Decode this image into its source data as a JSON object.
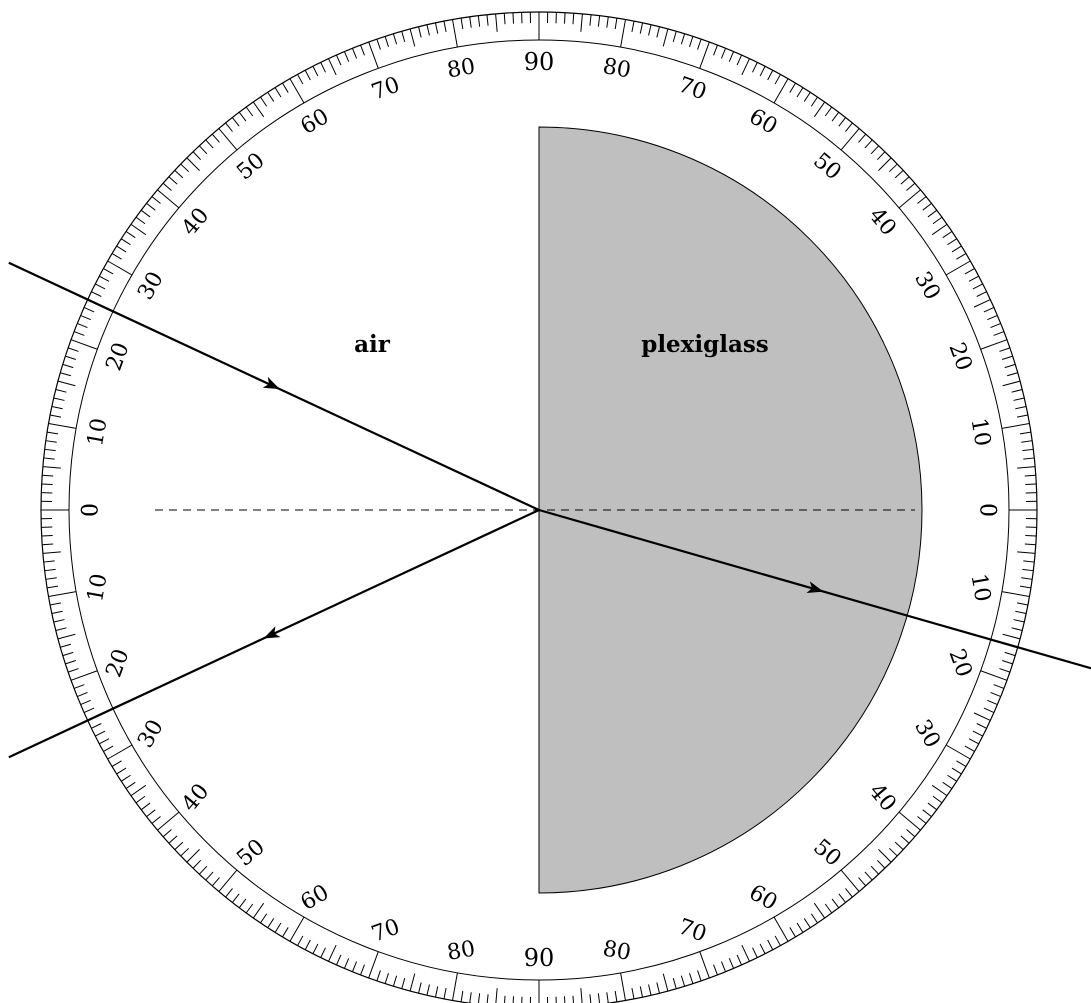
{
  "diagram": {
    "media": {
      "left_label": "air",
      "right_label": "plexiglass",
      "plexiglass_color": "#bfbfbf"
    },
    "protractor": {
      "minor_tick_step_deg": 1,
      "label_step_deg": 10,
      "labels": [
        "0",
        "10",
        "20",
        "30",
        "40",
        "50",
        "60",
        "70",
        "80",
        "90"
      ]
    },
    "rays": {
      "incident_angle_deg": 25,
      "reflected_angle_deg": 25,
      "refracted_angle_deg": 16,
      "normal_style": "dashed"
    }
  }
}
